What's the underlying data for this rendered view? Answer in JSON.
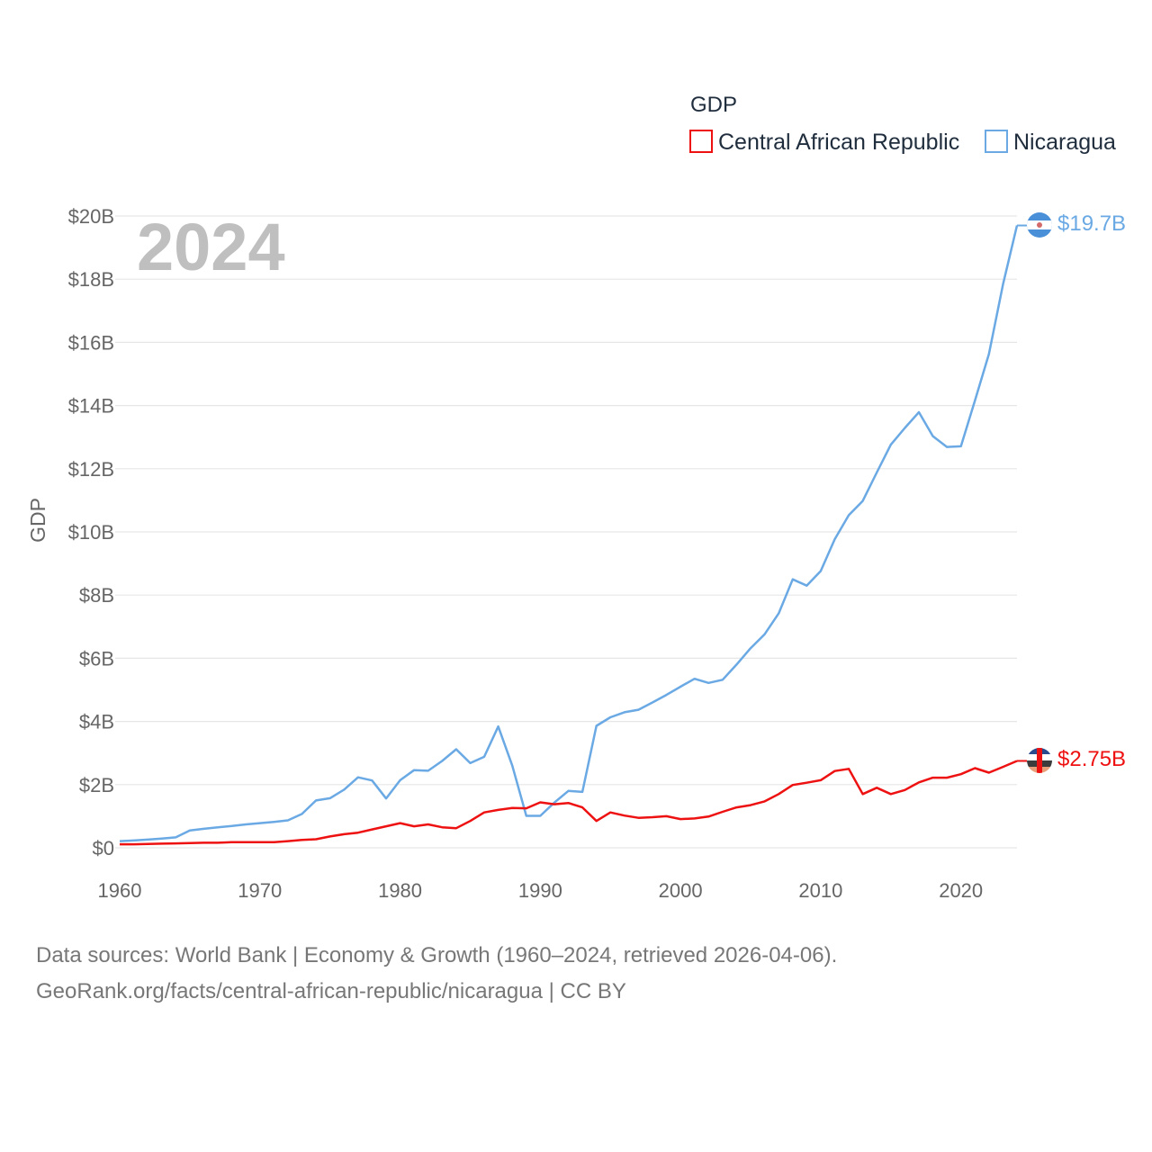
{
  "chart_data": {
    "type": "line",
    "legend_title": "GDP",
    "ylabel": "GDP",
    "year_label": "2024",
    "ylim": [
      0,
      20000000000
    ],
    "xlim": [
      1960,
      2024
    ],
    "x_ticks": [
      1960,
      1970,
      1980,
      1990,
      2000,
      2010,
      2020
    ],
    "y_ticks": [
      {
        "value": 0,
        "label": "$0"
      },
      {
        "value": 2000000000,
        "label": "$2B"
      },
      {
        "value": 4000000000,
        "label": "$4B"
      },
      {
        "value": 6000000000,
        "label": "$6B"
      },
      {
        "value": 8000000000,
        "label": "$8B"
      },
      {
        "value": 10000000000,
        "label": "$10B"
      },
      {
        "value": 12000000000,
        "label": "$12B"
      },
      {
        "value": 14000000000,
        "label": "$14B"
      },
      {
        "value": 16000000000,
        "label": "$16B"
      },
      {
        "value": 18000000000,
        "label": "$18B"
      },
      {
        "value": 20000000000,
        "label": "$20B"
      }
    ],
    "x_start": 1960,
    "series": [
      {
        "name": "Central African Republic",
        "color": "#ee1111",
        "end_label": "$2.75B",
        "values": [
          0.11,
          0.11,
          0.12,
          0.13,
          0.14,
          0.15,
          0.16,
          0.16,
          0.18,
          0.18,
          0.18,
          0.18,
          0.21,
          0.25,
          0.27,
          0.36,
          0.43,
          0.48,
          0.58,
          0.68,
          0.78,
          0.68,
          0.74,
          0.65,
          0.62,
          0.85,
          1.12,
          1.2,
          1.26,
          1.25,
          1.44,
          1.38,
          1.42,
          1.28,
          0.85,
          1.12,
          1.02,
          0.95,
          0.97,
          1.0,
          0.91,
          0.93,
          0.99,
          1.14,
          1.28,
          1.35,
          1.47,
          1.7,
          1.99,
          2.06,
          2.14,
          2.43,
          2.5,
          1.7,
          1.9,
          1.7,
          1.83,
          2.07,
          2.22,
          2.22,
          2.33,
          2.52,
          2.38,
          2.56,
          2.75
        ]
      },
      {
        "name": "Nicaragua",
        "color": "#6aa9e4",
        "end_label": "$19.7B",
        "values": [
          0.21,
          0.23,
          0.26,
          0.29,
          0.33,
          0.55,
          0.6,
          0.65,
          0.69,
          0.74,
          0.78,
          0.82,
          0.87,
          1.07,
          1.5,
          1.57,
          1.84,
          2.23,
          2.13,
          1.56,
          2.14,
          2.46,
          2.44,
          2.75,
          3.12,
          2.68,
          2.88,
          3.84,
          2.6,
          1.01,
          1.01,
          1.43,
          1.8,
          1.77,
          3.86,
          4.13,
          4.29,
          4.37,
          4.6,
          4.84,
          5.1,
          5.35,
          5.22,
          5.32,
          5.8,
          6.32,
          6.76,
          7.42,
          8.5,
          8.3,
          8.76,
          9.77,
          10.53,
          10.98,
          11.88,
          12.76,
          13.29,
          13.79,
          13.03,
          12.69,
          12.71,
          14.16,
          15.63,
          17.83,
          19.7
        ]
      }
    ]
  },
  "footer": {
    "line1": "Data sources: World Bank | Economy & Growth (1960–2024, retrieved 2026-04-06).",
    "line2": "GeoRank.org/facts/central-african-republic/nicaragua | CC BY"
  }
}
